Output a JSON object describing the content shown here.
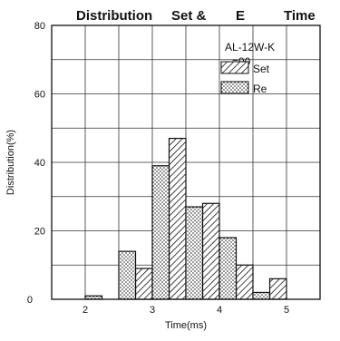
{
  "chart_data": {
    "type": "bar",
    "title_parts": [
      "Distribution",
      "Set &",
      "E",
      "Time"
    ],
    "xlabel": "Time(ms)",
    "ylabel": "Distribution(%)",
    "xlim": [
      1.5,
      5.5
    ],
    "ylim": [
      0,
      80
    ],
    "xticks": [
      2,
      3,
      4,
      5
    ],
    "yticks": [
      0,
      20,
      40,
      60,
      80
    ],
    "grid": true,
    "legend": "top-right",
    "annotations": [
      "AL-12W-K",
      "=90"
    ],
    "series": [
      {
        "name": "Set",
        "pattern": "diagonal-hatch",
        "bars": [
          {
            "x0": 2.75,
            "x1": 3.0,
            "value": 9
          },
          {
            "x0": 3.25,
            "x1": 3.5,
            "value": 47
          },
          {
            "x0": 3.75,
            "x1": 4.0,
            "value": 28
          },
          {
            "x0": 4.25,
            "x1": 4.5,
            "value": 10
          },
          {
            "x0": 4.75,
            "x1": 5.0,
            "value": 6
          }
        ]
      },
      {
        "name": "Re",
        "pattern": "dots",
        "bars": [
          {
            "x0": 2.0,
            "x1": 2.25,
            "value": 1
          },
          {
            "x0": 2.5,
            "x1": 2.75,
            "value": 14
          },
          {
            "x0": 3.0,
            "x1": 3.25,
            "value": 39
          },
          {
            "x0": 3.5,
            "x1": 3.75,
            "value": 27
          },
          {
            "x0": 4.0,
            "x1": 4.25,
            "value": 18
          },
          {
            "x0": 4.5,
            "x1": 4.75,
            "value": 2
          }
        ]
      }
    ],
    "colors": {
      "ink": "#111111",
      "grid": "#333333",
      "background": "#ffffff"
    }
  }
}
